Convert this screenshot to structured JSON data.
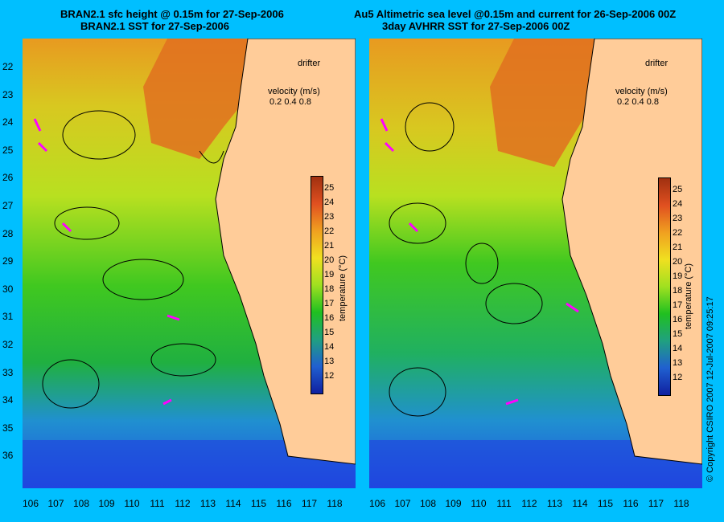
{
  "titles": {
    "left_line1": "BRAN2.1 sfc height @ 0.15m for 27-Sep-2006",
    "left_line2": "BRAN2.1 SST for 27-Sep-2006",
    "right_line1": "Au5 Altimetric sea level  @0.15m and current for 26-Sep-2006 00Z",
    "right_line2": "3day AVHRR SST for 27-Sep-2006 00Z"
  },
  "latitude_labels": [
    "22",
    "23",
    "24",
    "25",
    "26",
    "27",
    "28",
    "29",
    "30",
    "31",
    "32",
    "33",
    "34",
    "35",
    "36"
  ],
  "longitude_labels": [
    "106",
    "107",
    "108",
    "109",
    "110",
    "111",
    "112",
    "113",
    "114",
    "115",
    "116",
    "117",
    "118"
  ],
  "legend": {
    "drifter": "drifter",
    "velocity": "velocity (m/s)",
    "velocity_values": "0.2 0.4 0.8"
  },
  "colorbar": {
    "label": "temperature (°C)",
    "ticks": [
      "25",
      "24",
      "23",
      "22",
      "21",
      "20",
      "19",
      "18",
      "17",
      "16",
      "15",
      "14",
      "13",
      "12"
    ]
  },
  "copyright": "© Copyright CSIRO 2007   12-Jul-2007 09:25:17",
  "colors": {
    "background": "#00bfff",
    "land": "#ffcc99",
    "drifter": "#ff00ff"
  }
}
